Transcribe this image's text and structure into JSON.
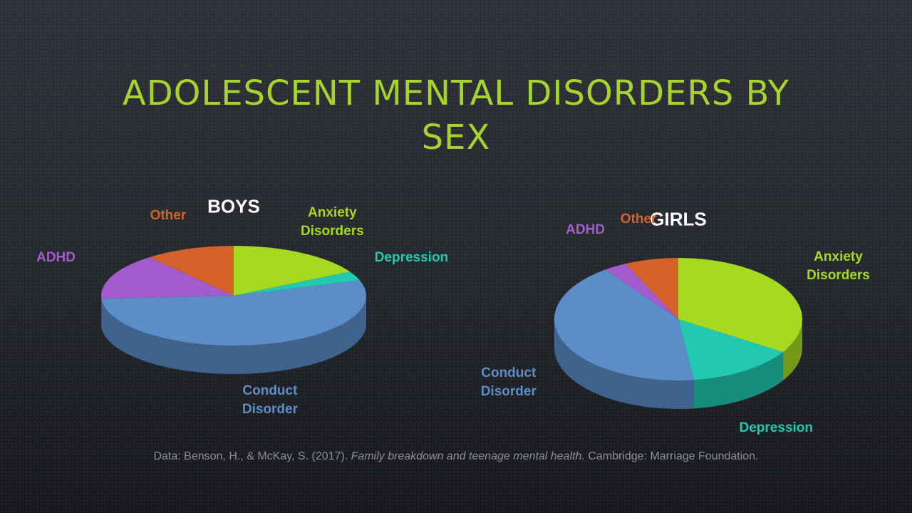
{
  "title": "ADOLESCENT MENTAL DISORDERS BY SEX",
  "source": {
    "before": "Data: Benson, H., & McKay, S. (2017).",
    "italic": "Family breakdown and teenage mental health.",
    "after": "Cambridge: Marriage Foundation."
  },
  "chart_data": [
    {
      "type": "pie",
      "title": "BOYS",
      "categories": [
        "Anxiety Disorders",
        "Depression",
        "Conduct Disorder",
        "ADHD",
        "Other"
      ],
      "values": [
        17,
        3,
        54,
        15,
        11
      ],
      "colors": [
        "#a6d922",
        "#22c9b0",
        "#5b8ec9",
        "#a25ccc",
        "#d4622a"
      ]
    },
    {
      "type": "pie",
      "title": "GIRLS",
      "categories": [
        "Anxiety Disorders",
        "Depression",
        "Conduct Disorder",
        "ADHD",
        "Other"
      ],
      "values": [
        34,
        14,
        42,
        3,
        7
      ],
      "colors": [
        "#a6d922",
        "#22c9b0",
        "#5b8ec9",
        "#a25ccc",
        "#d4622a"
      ]
    }
  ]
}
